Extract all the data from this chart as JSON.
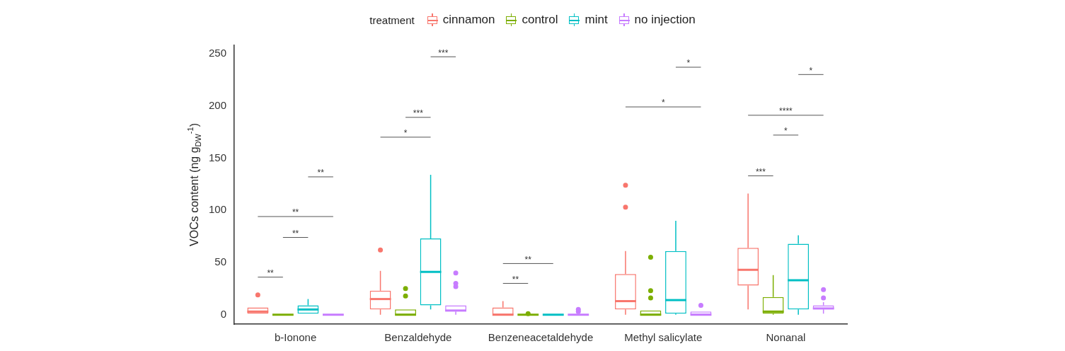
{
  "chart_data": {
    "type": "box",
    "ylabel": "VOCs content (ng g$_{DW}$$^{-1}$)",
    "legend_title": "treatment",
    "legend": "top",
    "categories": [
      "b-Ionone",
      "Benzaldehyde",
      "Benzeneacetaldehyde",
      "Methyl salicylate",
      "Nonanal"
    ],
    "ylim": [
      -9,
      258
    ],
    "yticks": [
      0,
      50,
      100,
      150,
      200,
      250
    ],
    "grid": false,
    "series": [
      {
        "name": "cinnamon",
        "color": "#f8766d",
        "boxes": [
          {
            "low": 1,
            "q1": 1,
            "median": 3,
            "q3": 7,
            "high": 7,
            "outliers": [
              19
            ]
          },
          {
            "low": 0,
            "q1": 5,
            "median": 15,
            "q3": 23,
            "high": 42,
            "outliers": [
              62
            ]
          },
          {
            "low": 0,
            "q1": 0,
            "median": 0,
            "q3": 7,
            "high": 13
          },
          {
            "low": 0,
            "q1": 5,
            "median": 13,
            "q3": 39,
            "high": 61,
            "outliers": [
              103,
              124
            ]
          },
          {
            "low": 5,
            "q1": 28,
            "median": 43,
            "q3": 64,
            "high": 116
          }
        ]
      },
      {
        "name": "control",
        "color": "#7cae00",
        "boxes": [
          {
            "low": 0,
            "q1": 0,
            "median": 0,
            "q3": 0,
            "high": 0
          },
          {
            "low": 0,
            "q1": 0,
            "median": 0,
            "q3": 5,
            "high": 5,
            "outliers": [
              18,
              25
            ]
          },
          {
            "low": 0,
            "q1": 0,
            "median": 0,
            "q3": 0,
            "high": 0,
            "outliers": [
              1
            ]
          },
          {
            "low": 0,
            "q1": 0,
            "median": 0,
            "q3": 4,
            "high": 4,
            "outliers": [
              16,
              23,
              55
            ]
          },
          {
            "low": 0,
            "q1": 1,
            "median": 3,
            "q3": 17,
            "high": 38
          }
        ]
      },
      {
        "name": "mint",
        "color": "#00bfc4",
        "boxes": [
          {
            "low": 1,
            "q1": 1,
            "median": 5,
            "q3": 9,
            "high": 15
          },
          {
            "low": 5,
            "q1": 9,
            "median": 41,
            "q3": 73,
            "high": 134
          },
          {
            "low": 0,
            "q1": 0,
            "median": 0,
            "q3": 0,
            "high": 0
          },
          {
            "low": 0,
            "q1": 1,
            "median": 14,
            "q3": 61,
            "high": 90
          },
          {
            "low": 0,
            "q1": 5,
            "median": 33,
            "q3": 68,
            "high": 76
          }
        ]
      },
      {
        "name": "no injection",
        "color": "#c77cff",
        "boxes": [
          {
            "low": 0,
            "q1": 0,
            "median": 0,
            "q3": 0,
            "high": 0
          },
          {
            "low": 0,
            "q1": 3,
            "median": 4,
            "q3": 9,
            "high": 9,
            "outliers": [
              27,
              30,
              40
            ]
          },
          {
            "low": 0,
            "q1": 0,
            "median": 0,
            "q3": 0,
            "high": 0,
            "outliers": [
              3,
              5
            ]
          },
          {
            "low": 0,
            "q1": 0,
            "median": 0,
            "q3": 3,
            "high": 3,
            "outliers": [
              9
            ]
          },
          {
            "low": 1,
            "q1": 5,
            "median": 6,
            "q3": 9,
            "high": 12,
            "outliers": [
              16,
              24
            ]
          }
        ]
      }
    ],
    "annotations": [
      "**",
      "**",
      "**",
      "**",
      "***",
      "***",
      "*",
      "**",
      "**",
      "*",
      "*",
      "*",
      "****",
      "*",
      "***"
    ]
  }
}
